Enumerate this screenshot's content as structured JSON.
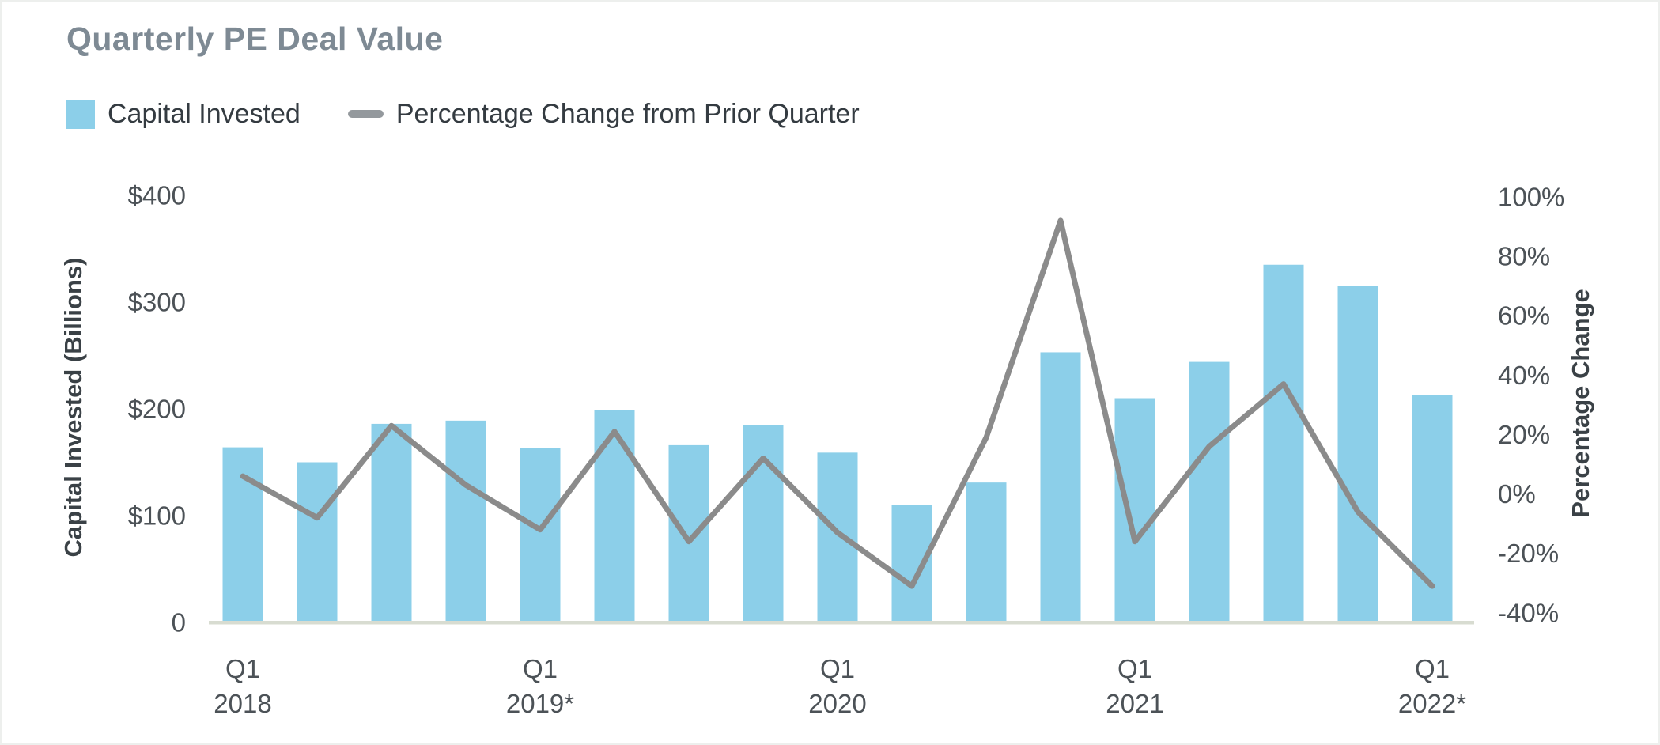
{
  "title": "Quarterly PE Deal Value",
  "legend": {
    "items": [
      {
        "label": "Capital Invested",
        "swatch": "square"
      },
      {
        "label": "Percentage Change from Prior Quarter",
        "swatch": "line"
      }
    ]
  },
  "chart_data": {
    "type": "bar",
    "combo": "bar+line",
    "title": "Quarterly PE Deal Value",
    "categories": [
      "Q1 2018",
      "Q2 2018",
      "Q3 2018",
      "Q4 2018",
      "Q1 2019",
      "Q2 2019",
      "Q3 2019",
      "Q4 2019",
      "Q1 2020",
      "Q2 2020",
      "Q3 2020",
      "Q4 2020",
      "Q1 2021",
      "Q2 2021",
      "Q3 2021",
      "Q4 2021",
      "Q1 2022"
    ],
    "series": [
      {
        "name": "Capital Invested",
        "type": "bar",
        "yaxis": "left",
        "unit": "USD billions",
        "values": [
          164,
          150,
          186,
          189,
          163,
          199,
          166,
          185,
          159,
          110,
          131,
          253,
          210,
          244,
          335,
          315,
          213
        ]
      },
      {
        "name": "Percentage Change from Prior Quarter",
        "type": "line",
        "yaxis": "right",
        "unit": "percent",
        "values": [
          6,
          -8,
          23,
          3,
          -12,
          21,
          -16,
          12,
          -13,
          -31,
          19,
          92,
          -16,
          16,
          37,
          -6,
          -31
        ]
      }
    ],
    "ylabel_left": "Capital Invested (Billions)",
    "ylabel_right": "Percentage Change",
    "ylim_left": [
      0,
      400
    ],
    "yticks_left": [
      "$400",
      "$300",
      "$200",
      "$100",
      "0"
    ],
    "yticks_left_values": [
      400,
      300,
      200,
      100,
      0
    ],
    "ylim_right": [
      -40,
      100
    ],
    "yticks_right": [
      "100%",
      "80%",
      "60%",
      "40%",
      "20%",
      "0%",
      "-20%",
      "-40%"
    ],
    "yticks_right_values": [
      100,
      80,
      60,
      40,
      20,
      0,
      -20,
      -40
    ],
    "xticks": [
      {
        "index": 0,
        "lines": [
          "Q1",
          "2018"
        ]
      },
      {
        "index": 4,
        "lines": [
          "Q1",
          "2019*"
        ]
      },
      {
        "index": 8,
        "lines": [
          "Q1",
          "2020"
        ]
      },
      {
        "index": 12,
        "lines": [
          "Q1",
          "2021"
        ]
      },
      {
        "index": 16,
        "lines": [
          "Q1",
          "2022*"
        ]
      }
    ],
    "grid": false,
    "legend_position": "top-left"
  },
  "colors": {
    "bar": "#8CCFE9",
    "line": "#8B8B8B",
    "legend_line": "#94999D",
    "title_text": "#7E8A94",
    "legend_text": "#343B41",
    "tick_text": "#4C5257",
    "axis_title_text": "#3A4146",
    "baseline": "#D8DCD1",
    "background": "#FFFFFF",
    "frame_border": "#EDEFED"
  }
}
